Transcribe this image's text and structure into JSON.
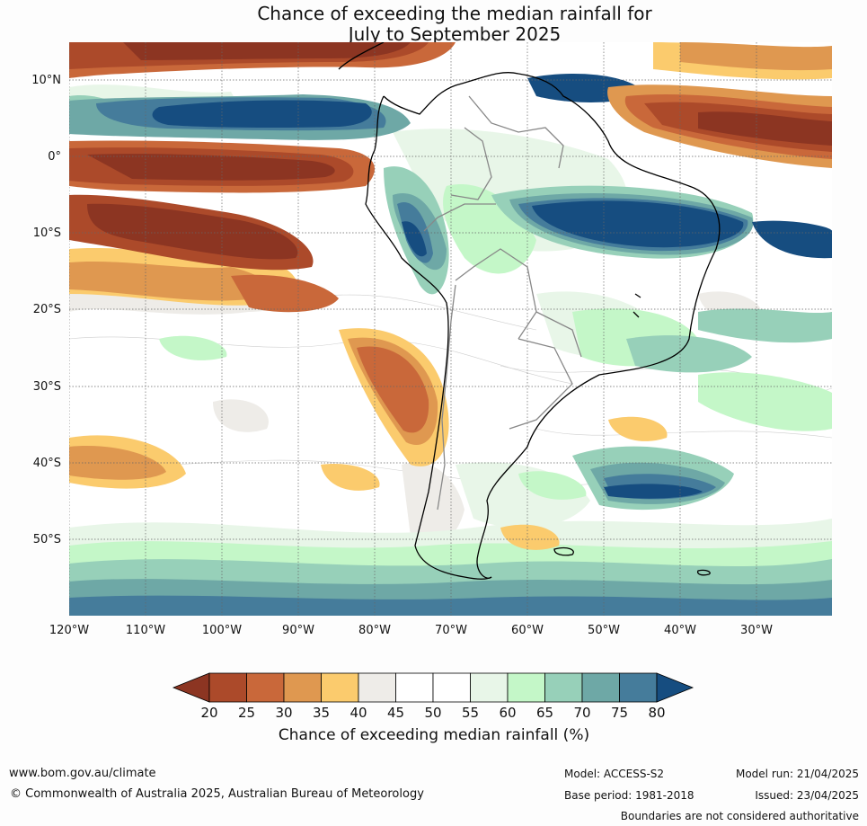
{
  "title": {
    "line1": "Chance of exceeding the median rainfall for",
    "line2": "July to September 2025"
  },
  "map": {
    "region": "South America",
    "lat_labels": [
      "10°N",
      "0°",
      "10°S",
      "20°S",
      "30°S",
      "40°S",
      "50°S"
    ],
    "lon_labels": [
      "120°W",
      "110°W",
      "100°W",
      "90°W",
      "80°W",
      "70°W",
      "60°W",
      "50°W",
      "40°W",
      "30°W"
    ]
  },
  "legend": {
    "ticks": [
      "20",
      "25",
      "30",
      "35",
      "40",
      "45",
      "50",
      "55",
      "60",
      "65",
      "70",
      "75",
      "80"
    ],
    "colors": [
      "#8c3522",
      "#ac4a2a",
      "#c9683a",
      "#df9850",
      "#fbcb6d",
      "#eeece8",
      "#ffffff",
      "#ffffff",
      "#e8f6e8",
      "#c4f7c8",
      "#97d0b9",
      "#6ea8a6",
      "#457c9b",
      "#164d80"
    ],
    "label": "Chance of exceeding median rainfall (%)"
  },
  "footer": {
    "url": "www.bom.gov.au/climate",
    "copyright": "© Commonwealth of Australia 2025, Australian Bureau of Meteorology",
    "model": "Model: ACCESS-S2",
    "base_period": "Base period: 1981-2018",
    "model_run": "Model run: 21/04/2025",
    "issued": "Issued: 23/04/2025",
    "disclaimer": "Boundaries are not considered authoritative"
  }
}
